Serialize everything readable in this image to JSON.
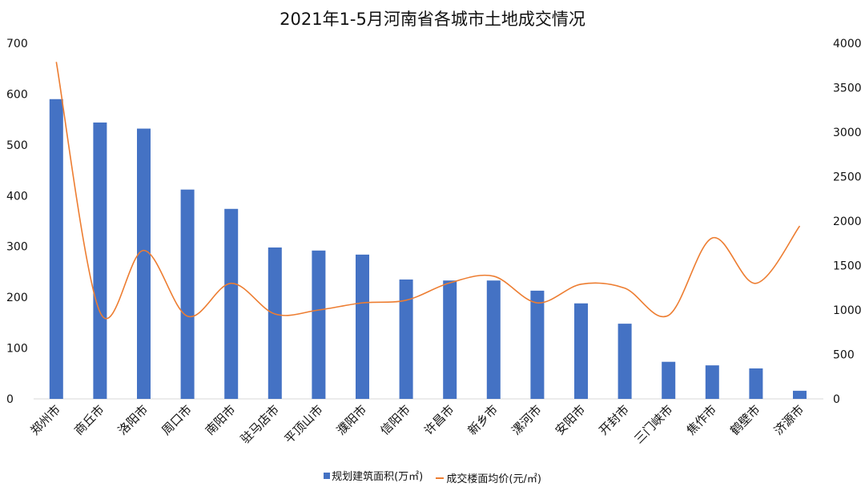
{
  "chart_data": {
    "type": "bar",
    "title": "2021年1-5月河南省各城市土地成交情况",
    "categories": [
      "郑州市",
      "商丘市",
      "洛阳市",
      "周口市",
      "南阳市",
      "驻马店市",
      "平顶山市",
      "濮阳市",
      "信阳市",
      "许昌市",
      "新乡市",
      "漯河市",
      "安阳市",
      "开封市",
      "三门峡市",
      "焦作市",
      "鹤壁市",
      "济源市"
    ],
    "series": [
      {
        "name": "规划建筑面积(万㎡)",
        "type": "bar",
        "axis": "left",
        "color": "#4472C4",
        "values": [
          590,
          544,
          532,
          412,
          374,
          298,
          292,
          284,
          235,
          233,
          233,
          213,
          188,
          148,
          73,
          66,
          60,
          16
        ]
      },
      {
        "name": "成交楼面均价(元/㎡)",
        "type": "line",
        "axis": "right",
        "color": "#ED7D31",
        "smooth": true,
        "values": [
          3790,
          975,
          1670,
          930,
          1300,
          955,
          1000,
          1080,
          1110,
          1305,
          1380,
          1080,
          1290,
          1245,
          940,
          1810,
          1300,
          1945
        ]
      }
    ],
    "xlabel": "",
    "ylabel": "",
    "ylim": [
      0,
      700
    ],
    "y2lim": [
      0,
      4000
    ],
    "yticks": [
      0,
      100,
      200,
      300,
      400,
      500,
      600,
      700
    ],
    "y2ticks": [
      0,
      500,
      1000,
      1500,
      2000,
      2500,
      3000,
      3500,
      4000
    ],
    "grid": false,
    "legend_position": "bottom"
  },
  "legend": {
    "bar_label": "规划建筑面积(万㎡)",
    "line_label": "成交楼面均价(元/㎡)"
  }
}
